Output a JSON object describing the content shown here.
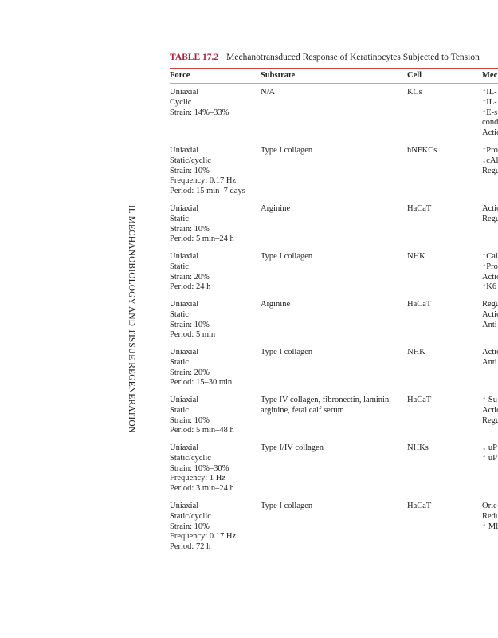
{
  "side_header": "II. MECHANOBIOLOGY AND TISSUE REGENERATION",
  "table": {
    "number": "TABLE 17.2",
    "title": "Mechanotransduced Response of Keratinocytes Subjected to Tension",
    "columns": [
      "Force",
      "Substrate",
      "Cell",
      "Mec"
    ],
    "rows": [
      {
        "force": [
          "Uniaxial",
          "Cyclic",
          "Strain: 14%–33%"
        ],
        "substrate": [
          "N/A"
        ],
        "cell": "KCs",
        "mech": [
          "↑IL-",
          "↑IL-",
          "↑E-s",
          "cond",
          "Actio"
        ]
      },
      {
        "force": [
          "Uniaxial",
          "Static/cyclic",
          "Strain: 10%",
          "Frequency: 0.17 Hz",
          "Period: 15 min–7 days"
        ],
        "substrate": [
          "Type I collagen"
        ],
        "cell": "hNFKCs",
        "mech": [
          "↑Pro",
          "↓cAl",
          "Regu"
        ]
      },
      {
        "force": [
          "Uniaxial",
          "Static",
          "Strain: 10%",
          "Period: 5 min–24 h"
        ],
        "substrate": [
          "Arginine"
        ],
        "cell": "HaCaT",
        "mech": [
          "Actio",
          "Regu"
        ]
      },
      {
        "force": [
          "Uniaxial",
          "Static",
          "Strain: 20%",
          "Period: 24 h"
        ],
        "substrate": [
          "Type I collagen"
        ],
        "cell": "NHK",
        "mech": [
          "↑Cal",
          "↑Pro",
          "Actio",
          "↑K6"
        ]
      },
      {
        "force": [
          "Uniaxial",
          "Static",
          "Strain: 10%",
          "Period: 5 min"
        ],
        "substrate": [
          "Arginine"
        ],
        "cell": "HaCaT",
        "mech": [
          "Regu",
          "Actio",
          "Anti"
        ]
      },
      {
        "force": [
          "Uniaxial",
          "Static",
          "Strain: 20%",
          "Period: 15–30 min"
        ],
        "substrate": [
          "Type I collagen"
        ],
        "cell": "NHK",
        "mech": [
          "Actio",
          "Anti"
        ]
      },
      {
        "force": [
          "Uniaxial",
          "Static",
          "Strain: 10%",
          "Period: 5 min–48 h"
        ],
        "substrate": [
          "Type IV collagen, fibronectin, laminin,",
          "arginine, fetal calf serum"
        ],
        "cell": "HaCaT",
        "mech": [
          "↑ Su",
          "Actio",
          "Regu"
        ]
      },
      {
        "force": [
          "Uniaxial",
          "Static/cyclic",
          "Strain: 10%–30%",
          "Frequency: 1 Hz",
          "Period: 3 min–24 h"
        ],
        "substrate": [
          "Type I/IV collagen"
        ],
        "cell": "NHKs",
        "mech": [
          "↓ uP",
          "↑ uP"
        ]
      },
      {
        "force": [
          "Uniaxial",
          "Static/cyclic",
          "Strain: 10%",
          "Frequency: 0.17 Hz",
          "Period: 72 h"
        ],
        "substrate": [
          "Type I collagen"
        ],
        "cell": "HaCaT",
        "mech": [
          "Orie",
          "Redu",
          "↑ Ml"
        ]
      }
    ]
  },
  "colors": {
    "accent": "#b3203a"
  }
}
